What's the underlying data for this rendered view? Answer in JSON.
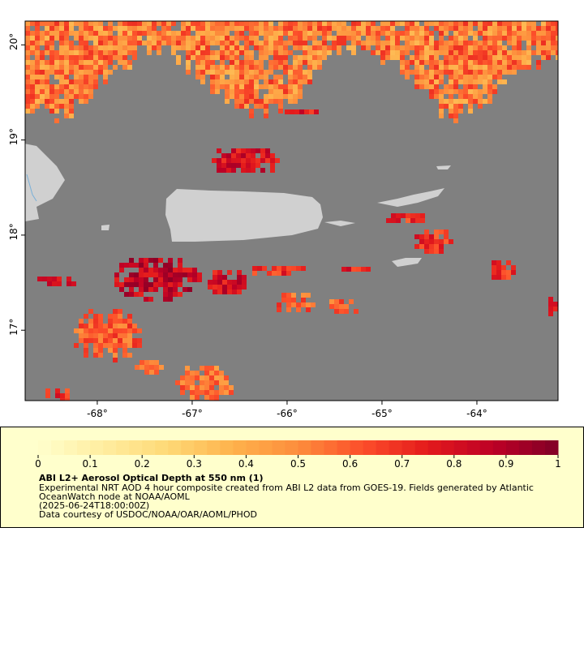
{
  "map": {
    "xlim": [
      -68.76,
      -63.145
    ],
    "ylim": [
      16.26,
      20.25
    ],
    "xticks": [
      {
        "value": -68,
        "label": "-68°"
      },
      {
        "value": -67,
        "label": "-67°"
      },
      {
        "value": -66,
        "label": "-66°"
      },
      {
        "value": -65,
        "label": "-65°"
      },
      {
        "value": -64,
        "label": "-64°"
      }
    ],
    "yticks": [
      {
        "value": 17,
        "label": "17°"
      },
      {
        "value": 18,
        "label": "18°"
      },
      {
        "value": 19,
        "label": "19°"
      },
      {
        "value": 20,
        "label": "20°"
      }
    ]
  },
  "colorbar": {
    "lim": [
      0,
      1
    ],
    "ticks": [
      0,
      0.1,
      0.2,
      0.3,
      0.4,
      0.5,
      0.6,
      0.7,
      0.8,
      0.9,
      1
    ]
  },
  "caption": {
    "title": "ABI L2+ Aerosol Optical Depth at 550 nm (1)",
    "lines": [
      "Experimental NRT AOD 4 hour composite created from ABI L2 data from GOES-19. Fields generated by Atlantic",
      "OceanWatch node at NOAA/AOML",
      "(2025-06-24T18:00:00Z)",
      "Data courtesy of USDOC/NOAA/OAR/AOML/PHOD"
    ]
  }
}
